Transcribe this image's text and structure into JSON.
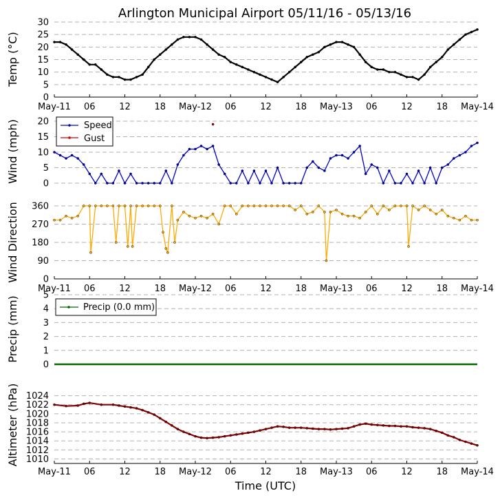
{
  "chart_data": [
    {
      "type": "line",
      "panel": "temperature",
      "title": "Arlington Municipal Airport 05/11/16 - 05/13/16",
      "ylabel": "Temp (°C)",
      "ylim": [
        0,
        30
      ],
      "yticks": [
        0,
        5,
        10,
        15,
        20,
        25,
        30
      ],
      "xlim": [
        0,
        72
      ],
      "xtick_labels": [
        "May-11",
        "06",
        "12",
        "18",
        "May-12",
        "06",
        "12",
        "18",
        "May-13",
        "06",
        "12",
        "18",
        "May-14"
      ],
      "series": [
        {
          "name": "Temp",
          "color": "#000000",
          "x": [
            0,
            1,
            2,
            3,
            4,
            5,
            6,
            7,
            8,
            9,
            10,
            11,
            12,
            13,
            14,
            15,
            16,
            17,
            18,
            19,
            20,
            21,
            22,
            23,
            24,
            25,
            26,
            27,
            28,
            29,
            30,
            31,
            32,
            33,
            34,
            35,
            36,
            37,
            38,
            39,
            40,
            41,
            42,
            43,
            44,
            45,
            46,
            47,
            48,
            49,
            50,
            51,
            52,
            53,
            54,
            55,
            56,
            57,
            58,
            59,
            60,
            61,
            62,
            63,
            64,
            65,
            66,
            67,
            68,
            69,
            70,
            71,
            72
          ],
          "values": [
            22,
            22,
            21,
            19,
            17,
            15,
            13,
            13,
            11,
            9,
            8,
            8,
            7,
            7,
            8,
            9,
            12,
            15,
            17,
            19,
            21,
            23,
            24,
            24,
            24,
            23,
            21,
            19,
            17,
            16,
            14,
            13,
            12,
            11,
            10,
            9,
            8,
            7,
            6,
            8,
            10,
            12,
            14,
            16,
            17,
            18,
            20,
            21,
            22,
            22,
            21,
            20,
            17,
            14,
            12,
            11,
            11,
            10,
            10,
            9,
            8,
            8,
            7,
            9,
            12,
            14,
            16,
            19,
            21,
            23,
            25,
            26,
            27
          ]
        }
      ]
    },
    {
      "type": "line",
      "panel": "wind",
      "ylabel": "Wind (mph)",
      "ylim": [
        0,
        20
      ],
      "yticks": [
        0,
        5,
        10,
        15,
        20
      ],
      "xlim": [
        0,
        72
      ],
      "legend": "top-left",
      "series": [
        {
          "name": "Speed",
          "color": "#0000cc",
          "x": [
            0,
            1,
            2,
            3,
            4,
            5,
            6,
            7,
            8,
            9,
            10,
            11,
            12,
            13,
            14,
            15,
            16,
            17,
            18,
            19,
            20,
            21,
            22,
            23,
            24,
            25,
            26,
            27,
            28,
            29,
            30,
            31,
            32,
            33,
            34,
            35,
            36,
            37,
            38,
            39,
            40,
            41,
            42,
            43,
            44,
            45,
            46,
            47,
            48,
            49,
            50,
            51,
            52,
            53,
            54,
            55,
            56,
            57,
            58,
            59,
            60,
            61,
            62,
            63,
            64,
            65,
            66,
            67,
            68,
            69,
            70,
            71,
            72
          ],
          "values": [
            10,
            9,
            8,
            9,
            8,
            6,
            3,
            0,
            3,
            0,
            0,
            4,
            0,
            3,
            0,
            0,
            0,
            0,
            0,
            4,
            0,
            6,
            9,
            11,
            11,
            12,
            11,
            12,
            6,
            3,
            0,
            0,
            4,
            0,
            4,
            0,
            4,
            0,
            5,
            0,
            0,
            0,
            0,
            5,
            7,
            5,
            4,
            8,
            9,
            9,
            8,
            10,
            12,
            3,
            6,
            5,
            0,
            4,
            0,
            0,
            3,
            0,
            4,
            0,
            5,
            0,
            5,
            6,
            8,
            9,
            10,
            12,
            13
          ]
        },
        {
          "name": "Gust",
          "color": "#cc0000",
          "x": [
            27
          ],
          "values": [
            19
          ]
        }
      ]
    },
    {
      "type": "line",
      "panel": "wind-direction",
      "ylabel": "Wind Direction",
      "ylim": [
        0,
        360
      ],
      "yticks": [
        0,
        90,
        180,
        270,
        360
      ],
      "xlim": [
        0,
        72
      ],
      "xtick_labels": [
        "May-11",
        "06",
        "12",
        "18",
        "May-12",
        "06",
        "12",
        "18",
        "May-13",
        "06",
        "12",
        "18",
        "May-14"
      ],
      "series": [
        {
          "name": "Direction",
          "color": "#ffaa00",
          "x": [
            0,
            1,
            2,
            3,
            4,
            5,
            6,
            6.2,
            7,
            8,
            9,
            10,
            10.5,
            11,
            12,
            12.5,
            13,
            13.3,
            14,
            15,
            16,
            17,
            18,
            18.5,
            19,
            19.3,
            20,
            20.5,
            21,
            22,
            23,
            24,
            25,
            26,
            27,
            28,
            29,
            30,
            31,
            32,
            33,
            34,
            35,
            36,
            37,
            38,
            39,
            40,
            41,
            42,
            43,
            44,
            45,
            46,
            46.3,
            47,
            48,
            49,
            50,
            51,
            52,
            53,
            54,
            55,
            56,
            57,
            58,
            59,
            60,
            60.3,
            61,
            62,
            63,
            64,
            65,
            66,
            67,
            68,
            69,
            70,
            71,
            72
          ],
          "values": [
            290,
            290,
            310,
            300,
            310,
            360,
            360,
            130,
            360,
            360,
            360,
            360,
            180,
            360,
            360,
            160,
            360,
            160,
            360,
            360,
            360,
            360,
            360,
            230,
            150,
            130,
            360,
            180,
            290,
            330,
            310,
            300,
            310,
            300,
            320,
            270,
            360,
            360,
            320,
            360,
            360,
            360,
            360,
            360,
            360,
            360,
            360,
            360,
            340,
            360,
            320,
            330,
            360,
            330,
            90,
            330,
            340,
            320,
            310,
            310,
            300,
            330,
            360,
            320,
            360,
            340,
            360,
            360,
            360,
            160,
            360,
            340,
            360,
            340,
            320,
            340,
            310,
            300,
            290,
            310,
            290,
            290
          ]
        }
      ]
    },
    {
      "type": "line",
      "panel": "precip",
      "ylabel": "Precip (mm)",
      "ylim": [
        0,
        5
      ],
      "yticks": [
        0,
        1,
        2,
        3,
        4,
        5
      ],
      "xlim": [
        0,
        72
      ],
      "legend": "top-left",
      "series": [
        {
          "name": "Precip (0.0 mm)",
          "color": "#006600",
          "x": [
            0,
            72
          ],
          "values": [
            0,
            0
          ]
        }
      ]
    },
    {
      "type": "line",
      "panel": "altimeter",
      "ylabel": "Altimeter (hPa)",
      "xlabel": "Time (UTC)",
      "ylim": [
        1009,
        1025
      ],
      "yticks": [
        1010,
        1012,
        1014,
        1016,
        1018,
        1020,
        1022,
        1024
      ],
      "xlim": [
        0,
        72
      ],
      "xtick_labels": [
        "May-11",
        "06",
        "12",
        "18",
        "May-12",
        "06",
        "12",
        "18",
        "May-13",
        "06",
        "12",
        "18",
        "May-14"
      ],
      "series": [
        {
          "name": "Altimeter",
          "color": "#880000",
          "x": [
            0,
            2,
            4,
            5,
            6,
            8,
            10,
            11,
            12,
            13,
            14,
            15,
            16,
            17,
            18,
            19,
            20,
            21,
            22,
            23,
            24,
            25,
            26,
            27,
            28,
            29,
            30,
            31,
            32,
            33,
            34,
            35,
            36,
            37,
            38,
            39,
            40,
            41,
            42,
            43,
            44,
            45,
            46,
            47,
            48,
            49,
            50,
            51,
            52,
            53,
            54,
            55,
            56,
            57,
            58,
            59,
            60,
            61,
            62,
            63,
            64,
            65,
            66,
            67,
            68,
            69,
            70,
            71,
            72
          ],
          "values": [
            1022,
            1021.7,
            1021.8,
            1022.2,
            1022.4,
            1022,
            1022,
            1021.8,
            1021.6,
            1021.4,
            1021.2,
            1020.8,
            1020.3,
            1019.8,
            1019,
            1018.2,
            1017.4,
            1016.6,
            1016,
            1015.5,
            1015,
            1014.7,
            1014.6,
            1014.7,
            1014.8,
            1015,
            1015.2,
            1015.4,
            1015.6,
            1015.8,
            1016,
            1016.3,
            1016.6,
            1016.9,
            1017.2,
            1017.1,
            1016.9,
            1016.9,
            1016.9,
            1016.8,
            1016.7,
            1016.6,
            1016.6,
            1016.5,
            1016.6,
            1016.7,
            1016.8,
            1017.2,
            1017.6,
            1017.8,
            1017.6,
            1017.5,
            1017.4,
            1017.3,
            1017.3,
            1017.2,
            1017.2,
            1017,
            1016.9,
            1016.8,
            1016.6,
            1016.2,
            1015.8,
            1015.2,
            1014.8,
            1014.2,
            1013.8,
            1013.4,
            1013
          ]
        }
      ]
    }
  ]
}
